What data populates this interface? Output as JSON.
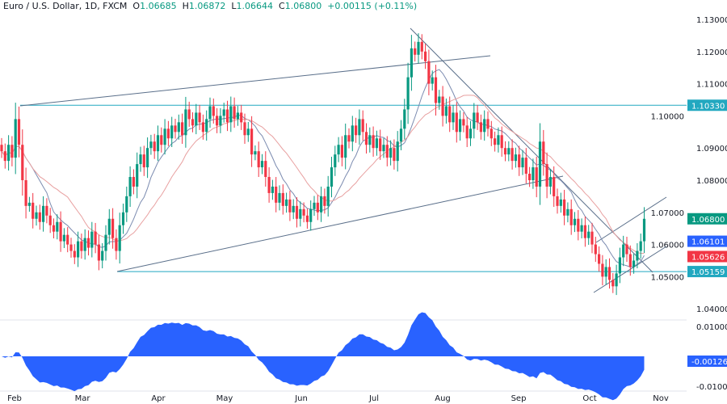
{
  "header": {
    "symbol": "Euro / U.S. Dollar, 1D, FXCM",
    "open_label": "O",
    "open": "1.06685",
    "high_label": "H",
    "high": "1.06872",
    "low_label": "L",
    "low": "1.06644",
    "close_label": "C",
    "close": "1.06800",
    "change": "+0.00115 (+0.11%)"
  },
  "colors": {
    "up": "#089981",
    "down": "#f23645",
    "ma_fast": "#7b8bb0",
    "ma_slow": "#e8a0a0",
    "level": "#22a8c0",
    "trendline": "#5a6f8a",
    "oscillator": "#2962ff"
  },
  "chart_data": {
    "type": "candlestick",
    "x_tick_labels": [
      "Feb",
      "Mar",
      "Apr",
      "May",
      "Jun",
      "Jul",
      "Aug",
      "Sep",
      "Oct",
      "Nov"
    ],
    "y_tick_labels": [
      "1.13000",
      "1.12000",
      "1.11000",
      "1.10000",
      "1.09000",
      "1.08000",
      "1.07000",
      "1.06000",
      "1.05000",
      "1.04000"
    ],
    "ylim": [
      1.04,
      1.13
    ],
    "closes": [
      1.089,
      1.086,
      1.091,
      1.087,
      1.099,
      1.091,
      1.08,
      1.072,
      1.073,
      1.068,
      1.07,
      1.067,
      1.072,
      1.069,
      1.066,
      1.064,
      1.067,
      1.061,
      1.063,
      1.06,
      1.058,
      1.056,
      1.061,
      1.058,
      1.062,
      1.059,
      1.064,
      1.06,
      1.055,
      1.058,
      1.063,
      1.068,
      1.062,
      1.058,
      1.066,
      1.07,
      1.075,
      1.081,
      1.078,
      1.085,
      1.088,
      1.084,
      1.09,
      1.092,
      1.089,
      1.094,
      1.091,
      1.096,
      1.093,
      1.097,
      1.095,
      1.098,
      1.094,
      1.102,
      1.099,
      1.097,
      1.101,
      1.098,
      1.095,
      1.099,
      1.103,
      1.1,
      1.097,
      1.1,
      1.102,
      1.098,
      1.103,
      1.099,
      1.101,
      1.098,
      1.094,
      1.096,
      1.088,
      1.089,
      1.084,
      1.086,
      1.081,
      1.076,
      1.078,
      1.073,
      1.076,
      1.072,
      1.074,
      1.07,
      1.072,
      1.068,
      1.071,
      1.069,
      1.067,
      1.071,
      1.073,
      1.07,
      1.075,
      1.072,
      1.078,
      1.084,
      1.088,
      1.091,
      1.087,
      1.094,
      1.092,
      1.097,
      1.094,
      1.099,
      1.095,
      1.091,
      1.094,
      1.09,
      1.093,
      1.089,
      1.091,
      1.087,
      1.09,
      1.086,
      1.092,
      1.096,
      1.102,
      1.112,
      1.121,
      1.119,
      1.123,
      1.12,
      1.117,
      1.11,
      1.112,
      1.104,
      1.106,
      1.1,
      1.103,
      1.098,
      1.101,
      1.095,
      1.099,
      1.097,
      1.093,
      1.096,
      1.101,
      1.098,
      1.095,
      1.099,
      1.096,
      1.093,
      1.091,
      1.094,
      1.09,
      1.088,
      1.09,
      1.086,
      1.088,
      1.084,
      1.087,
      1.082,
      1.08,
      1.084,
      1.078,
      1.092,
      1.085,
      1.078,
      1.081,
      1.075,
      1.072,
      1.074,
      1.069,
      1.071,
      1.066,
      1.068,
      1.064,
      1.066,
      1.062,
      1.064,
      1.06,
      1.057,
      1.054,
      1.05,
      1.053,
      1.049,
      1.047,
      1.051,
      1.056,
      1.06,
      1.057,
      1.053,
      1.055,
      1.058,
      1.061,
      1.068
    ],
    "price_tags": [
      {
        "value": "1.10330",
        "color": "#22a8c0"
      },
      {
        "value": "1.06800",
        "color": "#089981"
      },
      {
        "value": "1.06101",
        "color": "#2962ff"
      },
      {
        "value": "1.05626",
        "color": "#f23645"
      },
      {
        "value": "1.05159",
        "color": "#22a8c0"
      }
    ],
    "horizontal_levels": [
      1.1033,
      1.05159
    ],
    "oscillator": {
      "y_tick_labels": [
        "0.01000",
        "-0.01000"
      ],
      "ylim": [
        -0.01,
        0.01
      ],
      "last_value": "-0.00126"
    }
  }
}
